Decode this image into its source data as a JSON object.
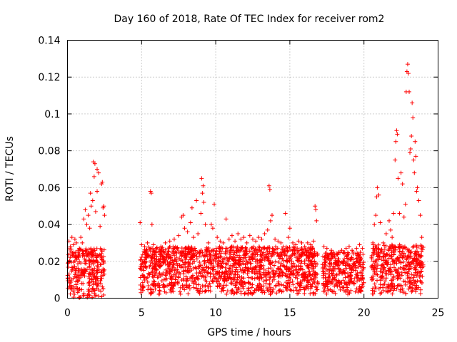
{
  "chart_data": {
    "type": "scatter",
    "title": "Day 160 of 2018, Rate Of TEC Index for receiver rom2",
    "xlabel": "GPS time / hours",
    "ylabel": "ROTI / TECUs",
    "xlim": [
      0,
      25
    ],
    "ylim": [
      0,
      0.14
    ],
    "x_ticks": [
      "0",
      "5",
      "10",
      "15",
      "20",
      "25"
    ],
    "y_ticks": [
      "0",
      "0.02",
      "0.04",
      "0.06",
      "0.08",
      "0.1",
      "0.12",
      "0.14"
    ],
    "x_tick_values": [
      0,
      5,
      10,
      15,
      20,
      25
    ],
    "y_tick_values": [
      0,
      0.02,
      0.04,
      0.06,
      0.08,
      0.1,
      0.12,
      0.14
    ],
    "grid": true,
    "marker": "+",
    "color": "#ff0000",
    "series": [
      {
        "points": [
          [
            0.1,
            0.031
          ],
          [
            0.2,
            0.028
          ],
          [
            0.3,
            0.033
          ],
          [
            0.4,
            0.029
          ],
          [
            0.5,
            0.032
          ],
          [
            0.6,
            0.03
          ],
          [
            0.8,
            0.027
          ],
          [
            0.9,
            0.033
          ],
          [
            1.0,
            0.03
          ],
          [
            1.1,
            0.043
          ],
          [
            1.2,
            0.048
          ],
          [
            1.3,
            0.04
          ],
          [
            1.4,
            0.045
          ],
          [
            1.5,
            0.038
          ],
          [
            1.6,
            0.05
          ],
          [
            1.7,
            0.053
          ],
          [
            1.75,
            0.074
          ],
          [
            1.8,
            0.066
          ],
          [
            1.85,
            0.073
          ],
          [
            1.9,
            0.047
          ],
          [
            2.0,
            0.058
          ],
          [
            2.1,
            0.068
          ],
          [
            2.2,
            0.039
          ],
          [
            2.3,
            0.062
          ],
          [
            2.35,
            0.063
          ],
          [
            2.4,
            0.049
          ],
          [
            2.45,
            0.05
          ],
          [
            2.5,
            0.045
          ],
          [
            1.55,
            0.057
          ],
          [
            2.0,
            0.07
          ],
          [
            4.9,
            0.041
          ],
          [
            5.0,
            0.029
          ],
          [
            5.2,
            0.028
          ],
          [
            5.4,
            0.03
          ],
          [
            5.6,
            0.058
          ],
          [
            5.65,
            0.057
          ],
          [
            5.7,
            0.04
          ],
          [
            5.8,
            0.029
          ],
          [
            6.0,
            0.027
          ],
          [
            6.3,
            0.028
          ],
          [
            6.6,
            0.03
          ],
          [
            6.9,
            0.031
          ],
          [
            7.2,
            0.032
          ],
          [
            7.5,
            0.034
          ],
          [
            7.7,
            0.044
          ],
          [
            7.8,
            0.045
          ],
          [
            7.9,
            0.038
          ],
          [
            8.1,
            0.036
          ],
          [
            8.3,
            0.041
          ],
          [
            8.4,
            0.049
          ],
          [
            8.5,
            0.033
          ],
          [
            8.7,
            0.053
          ],
          [
            8.8,
            0.035
          ],
          [
            9.0,
            0.046
          ],
          [
            9.05,
            0.065
          ],
          [
            9.1,
            0.057
          ],
          [
            9.15,
            0.061
          ],
          [
            9.2,
            0.052
          ],
          [
            9.3,
            0.04
          ],
          [
            9.5,
            0.03
          ],
          [
            9.7,
            0.04
          ],
          [
            9.8,
            0.038
          ],
          [
            9.9,
            0.051
          ],
          [
            10.1,
            0.033
          ],
          [
            10.3,
            0.031
          ],
          [
            10.5,
            0.03
          ],
          [
            10.7,
            0.043
          ],
          [
            10.9,
            0.032
          ],
          [
            11.1,
            0.034
          ],
          [
            11.3,
            0.031
          ],
          [
            11.5,
            0.035
          ],
          [
            11.7,
            0.032
          ],
          [
            11.9,
            0.033
          ],
          [
            12.1,
            0.03
          ],
          [
            12.3,
            0.034
          ],
          [
            12.5,
            0.032
          ],
          [
            12.7,
            0.031
          ],
          [
            12.9,
            0.033
          ],
          [
            13.1,
            0.032
          ],
          [
            13.3,
            0.035
          ],
          [
            13.5,
            0.037
          ],
          [
            13.6,
            0.061
          ],
          [
            13.65,
            0.059
          ],
          [
            13.7,
            0.042
          ],
          [
            13.8,
            0.045
          ],
          [
            14.0,
            0.032
          ],
          [
            14.2,
            0.031
          ],
          [
            14.4,
            0.03
          ],
          [
            14.7,
            0.046
          ],
          [
            14.9,
            0.033
          ],
          [
            15.0,
            0.038
          ],
          [
            15.2,
            0.03
          ],
          [
            15.4,
            0.029
          ],
          [
            15.6,
            0.031
          ],
          [
            15.8,
            0.03
          ],
          [
            16.0,
            0.028
          ],
          [
            16.2,
            0.03
          ],
          [
            16.4,
            0.029
          ],
          [
            16.6,
            0.031
          ],
          [
            16.7,
            0.05
          ],
          [
            16.75,
            0.048
          ],
          [
            16.8,
            0.042
          ],
          [
            17.3,
            0.028
          ],
          [
            17.5,
            0.027
          ],
          [
            17.8,
            0.026
          ],
          [
            18.0,
            0.024
          ],
          [
            18.3,
            0.025
          ],
          [
            18.5,
            0.026
          ],
          [
            18.8,
            0.027
          ],
          [
            19.0,
            0.028
          ],
          [
            19.2,
            0.026
          ],
          [
            19.5,
            0.027
          ],
          [
            19.7,
            0.029
          ],
          [
            19.9,
            0.027
          ],
          [
            20.6,
            0.03
          ],
          [
            20.7,
            0.04
          ],
          [
            20.8,
            0.045
          ],
          [
            20.85,
            0.055
          ],
          [
            20.9,
            0.06
          ],
          [
            21.0,
            0.056
          ],
          [
            21.1,
            0.041
          ],
          [
            21.3,
            0.03
          ],
          [
            21.5,
            0.035
          ],
          [
            21.7,
            0.042
          ],
          [
            21.8,
            0.037
          ],
          [
            21.9,
            0.033
          ],
          [
            22.0,
            0.046
          ],
          [
            22.1,
            0.075
          ],
          [
            22.15,
            0.085
          ],
          [
            22.2,
            0.091
          ],
          [
            22.25,
            0.089
          ],
          [
            22.3,
            0.065
          ],
          [
            22.4,
            0.046
          ],
          [
            22.5,
            0.068
          ],
          [
            22.6,
            0.062
          ],
          [
            22.7,
            0.044
          ],
          [
            22.8,
            0.051
          ],
          [
            22.85,
            0.112
          ],
          [
            22.9,
            0.123
          ],
          [
            22.95,
            0.127
          ],
          [
            23.0,
            0.122
          ],
          [
            23.05,
            0.112
          ],
          [
            23.1,
            0.079
          ],
          [
            23.15,
            0.081
          ],
          [
            23.2,
            0.088
          ],
          [
            23.25,
            0.106
          ],
          [
            23.3,
            0.098
          ],
          [
            23.35,
            0.075
          ],
          [
            23.4,
            0.068
          ],
          [
            23.45,
            0.085
          ],
          [
            23.5,
            0.077
          ],
          [
            23.55,
            0.058
          ],
          [
            23.6,
            0.06
          ],
          [
            23.7,
            0.053
          ],
          [
            23.8,
            0.045
          ],
          [
            23.9,
            0.033
          ]
        ]
      }
    ],
    "dense_bands": [
      {
        "x_start": 0.0,
        "x_end": 2.5,
        "y_min": 0.0,
        "y_max": 0.027
      },
      {
        "x_start": 4.9,
        "x_end": 16.9,
        "y_min": 0.002,
        "y_max": 0.028
      },
      {
        "x_start": 17.2,
        "x_end": 20.0,
        "y_min": 0.002,
        "y_max": 0.025
      },
      {
        "x_start": 20.5,
        "x_end": 24.0,
        "y_min": 0.002,
        "y_max": 0.029
      }
    ]
  }
}
